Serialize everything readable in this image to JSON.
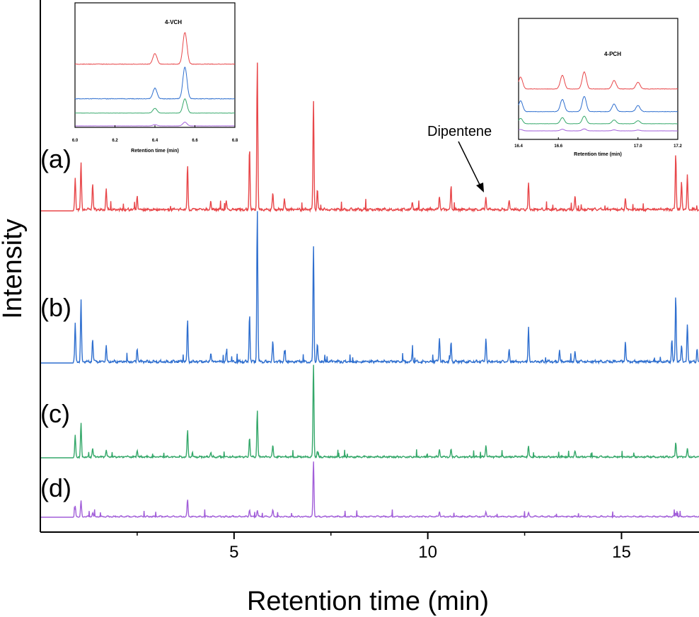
{
  "chart_data": {
    "type": "line",
    "title": "",
    "xlabel": "Retention time (min)",
    "ylabel": "Intensity",
    "xlim": [
      0,
      17
    ],
    "x_ticks": [
      5,
      10,
      15
    ],
    "grid": false,
    "annotation": "Dipentene",
    "series": [
      {
        "name": "(a)",
        "color": "#e8474a",
        "baseline": 0,
        "peaks": [
          [
            0.9,
            0.18
          ],
          [
            1.05,
            0.28
          ],
          [
            1.35,
            0.16
          ],
          [
            1.7,
            0.12
          ],
          [
            2.5,
            0.08
          ],
          [
            3.8,
            0.26
          ],
          [
            4.4,
            0.05
          ],
          [
            4.8,
            0.05
          ],
          [
            5.4,
            0.37
          ],
          [
            5.6,
            0.88
          ],
          [
            6.0,
            0.1
          ],
          [
            6.3,
            0.06
          ],
          [
            7.05,
            0.65
          ],
          [
            7.15,
            0.12
          ],
          [
            9.6,
            0.05
          ],
          [
            10.3,
            0.08
          ],
          [
            10.6,
            0.14
          ],
          [
            11.5,
            0.07
          ],
          [
            12.1,
            0.05
          ],
          [
            12.6,
            0.16
          ],
          [
            13.8,
            0.08
          ],
          [
            15.1,
            0.07
          ],
          [
            16.4,
            0.33
          ],
          [
            16.55,
            0.17
          ],
          [
            16.7,
            0.2
          ]
        ]
      },
      {
        "name": "(b)",
        "color": "#2f6fcf",
        "baseline": 0,
        "peaks": [
          [
            0.9,
            0.22
          ],
          [
            1.05,
            0.36
          ],
          [
            1.35,
            0.14
          ],
          [
            1.7,
            0.1
          ],
          [
            2.5,
            0.08
          ],
          [
            3.8,
            0.25
          ],
          [
            4.4,
            0.05
          ],
          [
            4.8,
            0.05
          ],
          [
            5.4,
            0.28
          ],
          [
            5.6,
            0.9
          ],
          [
            6.0,
            0.12
          ],
          [
            6.3,
            0.06
          ],
          [
            7.05,
            0.7
          ],
          [
            7.15,
            0.1
          ],
          [
            9.6,
            0.05
          ],
          [
            10.3,
            0.14
          ],
          [
            10.6,
            0.12
          ],
          [
            11.5,
            0.14
          ],
          [
            12.1,
            0.07
          ],
          [
            12.6,
            0.2
          ],
          [
            13.4,
            0.07
          ],
          [
            13.8,
            0.06
          ],
          [
            15.1,
            0.12
          ],
          [
            16.3,
            0.13
          ],
          [
            16.4,
            0.39
          ],
          [
            16.55,
            0.1
          ],
          [
            16.7,
            0.22
          ],
          [
            16.95,
            0.08
          ]
        ]
      },
      {
        "name": "(c)",
        "color": "#35a86a",
        "baseline": 0,
        "peaks": [
          [
            0.9,
            0.18
          ],
          [
            1.05,
            0.29
          ],
          [
            1.35,
            0.08
          ],
          [
            1.7,
            0.06
          ],
          [
            2.5,
            0.06
          ],
          [
            3.8,
            0.23
          ],
          [
            4.4,
            0.04
          ],
          [
            5.4,
            0.17
          ],
          [
            5.6,
            0.4
          ],
          [
            6.0,
            0.1
          ],
          [
            7.05,
            0.81
          ],
          [
            7.15,
            0.05
          ],
          [
            10.3,
            0.07
          ],
          [
            10.6,
            0.07
          ],
          [
            11.5,
            0.1
          ],
          [
            12.6,
            0.09
          ],
          [
            13.8,
            0.05
          ],
          [
            16.4,
            0.13
          ],
          [
            16.7,
            0.07
          ]
        ]
      },
      {
        "name": "(d)",
        "color": "#a25fd9",
        "baseline": 0,
        "peaks": [
          [
            0.9,
            0.08
          ],
          [
            1.05,
            0.12
          ],
          [
            1.35,
            0.03
          ],
          [
            3.8,
            0.13
          ],
          [
            5.4,
            0.05
          ],
          [
            5.6,
            0.05
          ],
          [
            6.0,
            0.05
          ],
          [
            7.05,
            0.43
          ],
          [
            10.3,
            0.04
          ],
          [
            11.5,
            0.04
          ],
          [
            12.6,
            0.03
          ],
          [
            16.4,
            0.03
          ]
        ]
      }
    ],
    "insets": [
      {
        "title": "4-VCH",
        "xlabel": "Retention time (min)",
        "xlim": [
          6.0,
          6.8
        ],
        "x_ticks": [
          "6.0",
          "6.2",
          "6.4",
          "6.6",
          "6.8"
        ],
        "peaks": [
          [
            6.4,
            1.0
          ],
          [
            6.55,
            3.0
          ]
        ],
        "scales": [
          1.0,
          1.0,
          0.45,
          0.12
        ]
      },
      {
        "title": "4-PCH",
        "xlabel": "Retention time (min)",
        "xlim": [
          16.4,
          17.2
        ],
        "x_ticks": [
          "16.4",
          "16.6",
          "17.0",
          "17.2"
        ],
        "peaks": [
          [
            16.41,
            1.4
          ],
          [
            16.62,
            1.6
          ],
          [
            16.73,
            2.0
          ],
          [
            16.88,
            1.0
          ],
          [
            17.0,
            0.8
          ]
        ],
        "scales": [
          1.0,
          0.9,
          0.45,
          0.12
        ]
      }
    ]
  }
}
